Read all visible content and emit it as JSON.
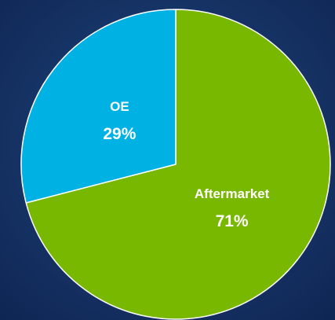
{
  "chart_data": {
    "type": "pie",
    "categories": [
      "Aftermarket",
      "OE"
    ],
    "values": [
      71,
      29
    ],
    "value_labels": [
      "71%",
      "29%"
    ],
    "colors": [
      "#78b800",
      "#00b2e3"
    ]
  }
}
